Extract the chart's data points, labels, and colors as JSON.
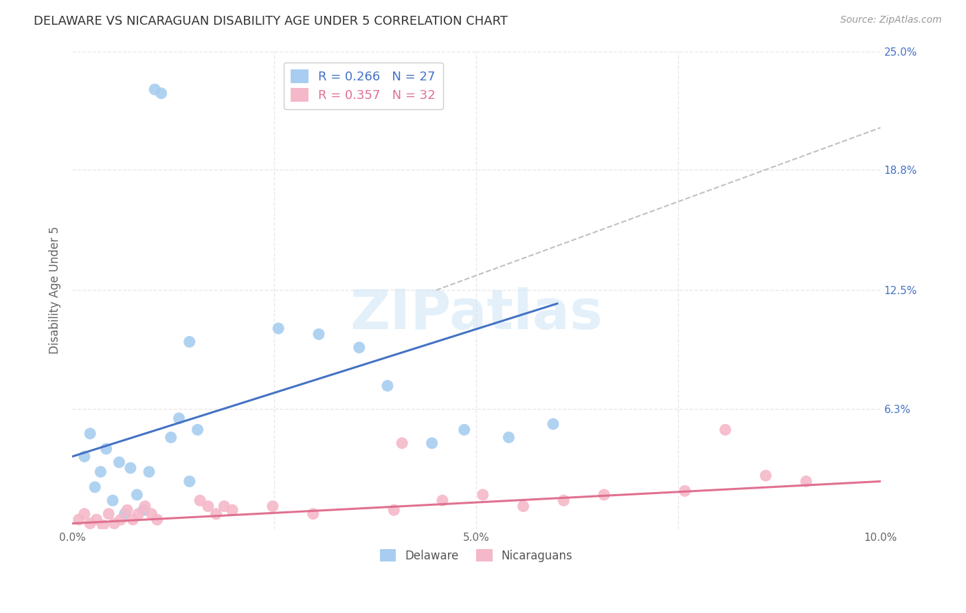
{
  "title": "DELAWARE VS NICARAGUAN DISABILITY AGE UNDER 5 CORRELATION CHART",
  "source": "Source: ZipAtlas.com",
  "ylabel": "Disability Age Under 5",
  "xlim": [
    0.0,
    10.0
  ],
  "ylim": [
    0.0,
    25.0
  ],
  "yticks_right": [
    0.0,
    6.3,
    12.5,
    18.8,
    25.0
  ],
  "ytick_labels_right": [
    "",
    "6.3%",
    "12.5%",
    "18.8%",
    "25.0%"
  ],
  "watermark": "ZIPatlas",
  "delaware_color": "#a8cdf0",
  "nicaraguan_color": "#f5b8c8",
  "delaware_line_color": "#4472c4",
  "nicaraguan_line_color": "#e07090",
  "dashed_line_color": "#c0c0c0",
  "legend_R1": "0.266",
  "legend_N1": "27",
  "legend_R2": "0.357",
  "legend_N2": "32",
  "delaware_label": "Delaware",
  "nicaraguan_label": "Nicaraguans",
  "delaware_x": [
    0.15,
    0.22,
    0.28,
    0.35,
    0.42,
    0.5,
    0.58,
    0.65,
    0.72,
    0.8,
    0.88,
    0.95,
    1.02,
    1.1,
    1.22,
    1.45,
    1.55,
    2.55,
    3.05,
    3.55,
    3.9,
    4.45,
    4.85,
    5.4,
    5.95,
    1.32,
    1.45
  ],
  "delaware_y": [
    3.8,
    5.0,
    2.2,
    3.0,
    4.2,
    1.5,
    3.5,
    0.8,
    3.2,
    1.8,
    1.0,
    3.0,
    23.0,
    22.8,
    4.8,
    9.8,
    5.2,
    10.5,
    10.2,
    9.5,
    7.5,
    4.5,
    5.2,
    4.8,
    5.5,
    5.8,
    2.5
  ],
  "nicaraguan_x": [
    0.08,
    0.15,
    0.22,
    0.3,
    0.38,
    0.45,
    0.52,
    0.6,
    0.68,
    0.75,
    0.82,
    0.9,
    0.98,
    1.05,
    1.58,
    1.68,
    1.78,
    1.88,
    1.98,
    2.48,
    2.98,
    3.98,
    4.08,
    4.58,
    5.08,
    5.58,
    6.08,
    6.58,
    7.58,
    8.08,
    8.58,
    9.08
  ],
  "nicaraguan_y": [
    0.5,
    0.8,
    0.3,
    0.5,
    0.2,
    0.8,
    0.3,
    0.5,
    1.0,
    0.5,
    0.8,
    1.2,
    0.8,
    0.5,
    1.5,
    1.2,
    0.8,
    1.2,
    1.0,
    1.2,
    0.8,
    1.0,
    4.5,
    1.5,
    1.8,
    1.2,
    1.5,
    1.8,
    2.0,
    5.2,
    2.8,
    2.5
  ],
  "delaware_line_x0": 0.0,
  "delaware_line_y0": 3.8,
  "delaware_line_x1": 6.0,
  "delaware_line_y1": 11.8,
  "nicaraguan_line_x0": 0.0,
  "nicaraguan_line_y0": 0.3,
  "nicaraguan_line_x1": 10.0,
  "nicaraguan_line_y1": 2.5,
  "dash_x0": 4.5,
  "dash_y0": 12.5,
  "dash_x1": 10.0,
  "dash_y1": 21.0,
  "background_color": "#ffffff",
  "grid_color": "#e8e8e8"
}
